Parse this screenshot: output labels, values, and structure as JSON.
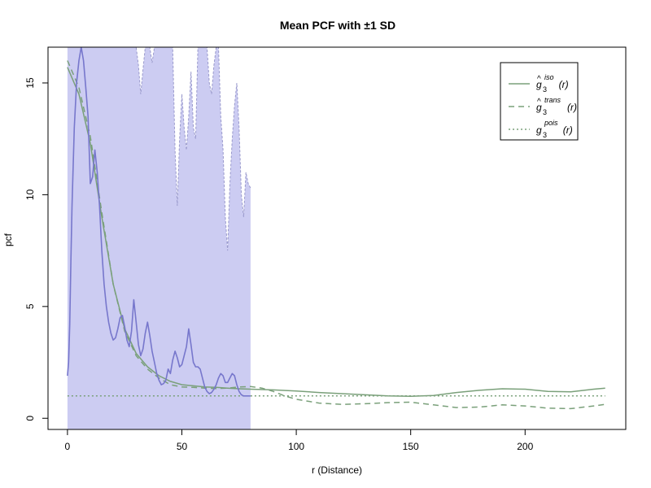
{
  "chart_data": {
    "type": "line",
    "title": "Mean PCF with ±1 SD",
    "xlabel": "r (Distance)",
    "ylabel": "pcf",
    "xlim": [
      -8.5,
      244
    ],
    "ylim": [
      -0.5,
      16.6
    ],
    "x_ticks": [
      0,
      50,
      100,
      150,
      200
    ],
    "y_ticks": [
      0,
      5,
      10,
      15
    ],
    "legend": {
      "placement": "top-right",
      "entries": [
        {
          "base": "g",
          "hat": "^",
          "sub": "3",
          "sup": "iso",
          "arg": "(r)",
          "style": "solid"
        },
        {
          "base": "g",
          "hat": "^",
          "sub": "3",
          "sup": "trans",
          "arg": "(r)",
          "style": "dashed"
        },
        {
          "base": "g",
          "hat": "",
          "sub": "3",
          "sup": "pois",
          "arg": "(r)",
          "style": "dotted"
        }
      ]
    },
    "colors": {
      "envelope_fill": "#ccccf2",
      "mean_line": "#7777cc",
      "model_lines": "#7aa07a",
      "axis": "#000000",
      "upper_edge": "#9999cc"
    },
    "envelope": {
      "x": [
        0,
        2,
        4,
        6,
        8,
        10,
        12,
        14,
        16,
        18,
        20,
        22,
        24,
        26,
        28,
        30,
        31,
        32,
        33,
        34,
        36,
        37,
        38,
        39,
        40,
        42,
        44,
        46,
        47,
        48,
        49,
        50,
        51,
        52,
        53,
        54,
        55,
        56,
        57,
        58,
        59,
        60,
        61,
        62,
        63,
        64,
        65,
        66,
        67,
        68,
        69,
        70,
        71,
        72,
        73,
        74,
        75,
        76,
        77,
        78,
        79,
        80
      ],
      "upper": [
        16.6,
        16.6,
        16.6,
        16.6,
        16.6,
        16.6,
        16.6,
        16.6,
        16.6,
        16.6,
        16.6,
        16.6,
        16.6,
        16.6,
        16.6,
        16.6,
        15.8,
        14.5,
        15.6,
        16.6,
        16.6,
        15.9,
        16.6,
        16.6,
        16.6,
        16.6,
        16.6,
        16.6,
        12.0,
        9.5,
        12.5,
        14.5,
        13.0,
        12.0,
        13.5,
        15.5,
        13.0,
        12.5,
        16.6,
        16.6,
        16.6,
        16.6,
        16.6,
        15.0,
        14.5,
        15.8,
        16.6,
        16.6,
        13.5,
        12.0,
        9.0,
        7.5,
        10.5,
        12.5,
        14.0,
        15.0,
        13.0,
        10.0,
        9.0,
        11.0,
        10.5,
        10.3
      ]
    },
    "series": [
      {
        "name": "mean",
        "x": [
          0,
          0.5,
          1,
          1.5,
          2,
          3,
          4,
          5,
          6,
          7,
          8,
          9,
          10,
          11,
          12,
          13,
          14,
          15,
          16,
          17,
          18,
          19,
          20,
          21,
          22,
          23,
          24,
          25,
          26,
          27,
          28,
          29,
          30,
          31,
          32,
          33,
          34,
          35,
          36,
          37,
          38,
          39,
          40,
          41,
          42,
          43,
          44,
          45,
          46,
          47,
          48,
          49,
          50,
          51,
          52,
          53,
          54,
          55,
          56,
          57,
          58,
          59,
          60,
          61,
          62,
          63,
          64,
          65,
          66,
          67,
          68,
          69,
          70,
          71,
          72,
          73,
          74,
          75,
          76,
          77,
          78,
          79,
          80
        ],
        "y": [
          1.9,
          2.5,
          4.2,
          7.0,
          9.5,
          13.0,
          15.0,
          16.0,
          16.6,
          16.0,
          14.8,
          13.5,
          10.5,
          10.8,
          12.0,
          11.0,
          9.5,
          7.5,
          6.0,
          5.0,
          4.3,
          3.8,
          3.5,
          3.6,
          4.0,
          4.5,
          4.6,
          4.1,
          3.5,
          3.2,
          3.9,
          5.3,
          4.3,
          3.3,
          2.8,
          3.1,
          3.8,
          4.3,
          3.7,
          3.0,
          2.5,
          2.0,
          1.7,
          1.5,
          1.55,
          1.7,
          2.2,
          2.0,
          2.6,
          3.0,
          2.7,
          2.3,
          2.4,
          2.8,
          3.2,
          4.0,
          3.3,
          2.5,
          2.3,
          2.3,
          2.2,
          1.8,
          1.4,
          1.2,
          1.1,
          1.15,
          1.3,
          1.5,
          1.8,
          2.0,
          1.9,
          1.6,
          1.6,
          1.8,
          2.0,
          1.9,
          1.5,
          1.2,
          1.05,
          1.0,
          1.0,
          1.0,
          1.0
        ]
      },
      {
        "name": "iso",
        "x": [
          0,
          5,
          10,
          15,
          20,
          25,
          30,
          35,
          40,
          45,
          50,
          55,
          60,
          65,
          70,
          75,
          80,
          90,
          100,
          110,
          120,
          130,
          140,
          150,
          160,
          170,
          180,
          190,
          200,
          210,
          220,
          230,
          235
        ],
        "y": [
          15.7,
          14.5,
          12.3,
          9.0,
          6.0,
          4.0,
          2.9,
          2.3,
          1.9,
          1.65,
          1.5,
          1.45,
          1.4,
          1.38,
          1.35,
          1.32,
          1.3,
          1.27,
          1.22,
          1.15,
          1.1,
          1.05,
          1.0,
          0.98,
          1.02,
          1.15,
          1.25,
          1.32,
          1.3,
          1.2,
          1.18,
          1.3,
          1.35
        ]
      },
      {
        "name": "trans",
        "x": [
          0,
          5,
          10,
          15,
          20,
          25,
          30,
          35,
          40,
          45,
          50,
          55,
          60,
          65,
          70,
          75,
          80,
          85,
          90,
          95,
          100,
          110,
          120,
          130,
          140,
          150,
          160,
          170,
          180,
          190,
          200,
          210,
          220,
          230,
          235
        ],
        "y": [
          16.0,
          14.8,
          12.6,
          9.2,
          6.0,
          3.9,
          2.8,
          2.2,
          1.8,
          1.5,
          1.4,
          1.38,
          1.35,
          1.33,
          1.35,
          1.4,
          1.42,
          1.35,
          1.2,
          1.0,
          0.85,
          0.68,
          0.62,
          0.65,
          0.7,
          0.72,
          0.6,
          0.48,
          0.5,
          0.6,
          0.55,
          0.45,
          0.43,
          0.55,
          0.62
        ]
      },
      {
        "name": "pois",
        "x": [
          0,
          235
        ],
        "y": [
          1.0,
          1.0
        ]
      }
    ]
  }
}
